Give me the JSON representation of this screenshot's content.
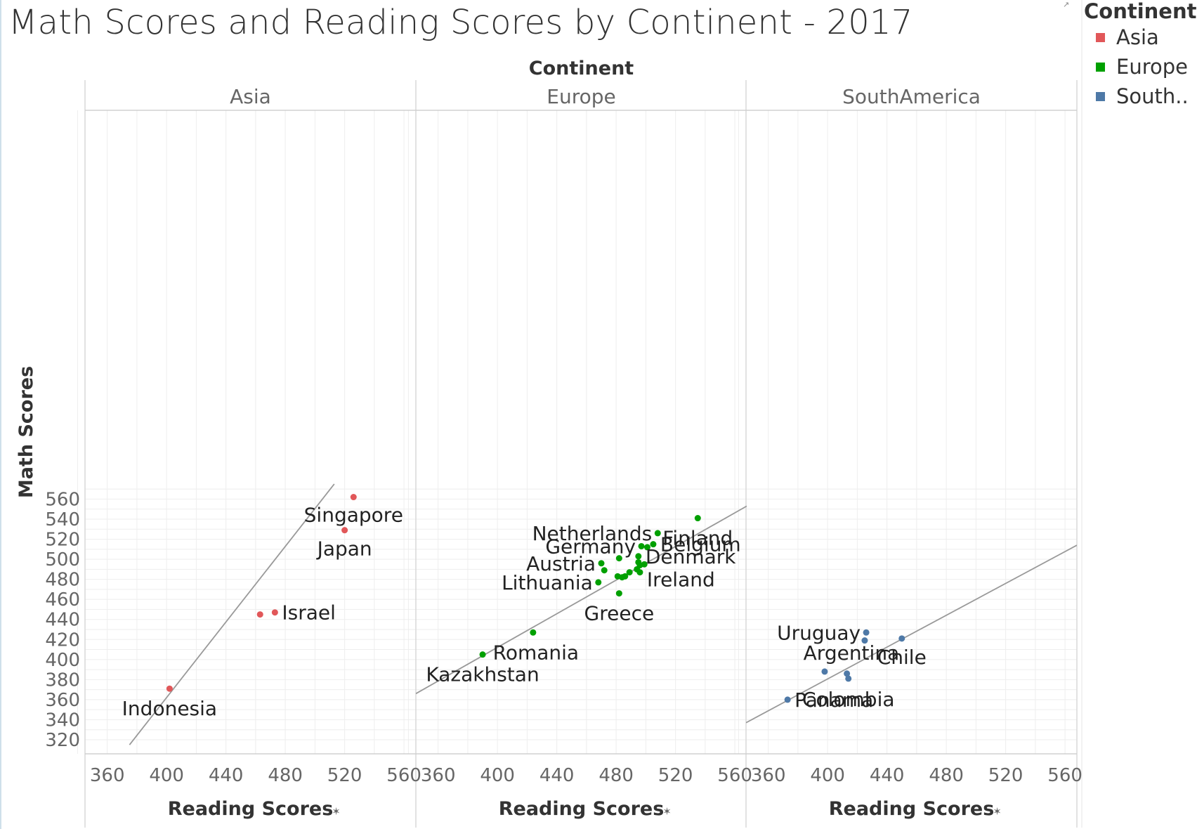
{
  "title": "Math Scores and Reading Scores by Continent - 2017",
  "legend": {
    "title": "Continent",
    "items": [
      {
        "label": "Asia",
        "color": "#e15759"
      },
      {
        "label": "Europe",
        "color": "#00a000"
      },
      {
        "label": "South..",
        "color": "#4e79a7"
      }
    ]
  },
  "chart_data": {
    "type": "scatter",
    "title": "Math Scores and Reading Scores by Continent - 2017",
    "column_header_title": "Continent",
    "xlabel": "Reading Scores",
    "ylabel": "Math Scores",
    "xlim": [
      345,
      568
    ],
    "ylim": [
      315,
      575
    ],
    "x_ticks": [
      360,
      400,
      440,
      480,
      520,
      560
    ],
    "y_ticks": [
      320,
      340,
      360,
      380,
      400,
      420,
      440,
      460,
      480,
      500,
      520,
      540,
      560
    ],
    "grid": true,
    "legend_position": "top-right",
    "trend_line_color": "#999999",
    "panels": [
      {
        "name": "Asia",
        "color": "#e15759",
        "trend_line": {
          "x": [
            375,
            513
          ],
          "y": [
            315,
            575
          ]
        },
        "points": [
          {
            "x": 526,
            "y": 562,
            "label": "Singapore"
          },
          {
            "x": 520,
            "y": 529,
            "label": "Japan"
          },
          {
            "x": 473,
            "y": 447,
            "label": "Israel"
          },
          {
            "x": 463,
            "y": 445,
            "label": ""
          },
          {
            "x": 402,
            "y": 371,
            "label": "Indonesia"
          }
        ]
      },
      {
        "name": "Europe",
        "color": "#00a000",
        "trend_line": {
          "x": [
            345,
            568
          ],
          "y": [
            366,
            553
          ]
        },
        "points": [
          {
            "x": 535,
            "y": 541,
            "label": "Finland"
          },
          {
            "x": 508,
            "y": 526,
            "label": "Netherlands"
          },
          {
            "x": 505,
            "y": 515,
            "label": "Belgium"
          },
          {
            "x": 497,
            "y": 513,
            "label": "Germany"
          },
          {
            "x": 501,
            "y": 512,
            "label": ""
          },
          {
            "x": 495,
            "y": 503,
            "label": "Denmark"
          },
          {
            "x": 482,
            "y": 501,
            "label": ""
          },
          {
            "x": 495,
            "y": 497,
            "label": ""
          },
          {
            "x": 470,
            "y": 496,
            "label": "Austria"
          },
          {
            "x": 499,
            "y": 495,
            "label": ""
          },
          {
            "x": 496,
            "y": 494,
            "label": ""
          },
          {
            "x": 494,
            "y": 490,
            "label": ""
          },
          {
            "x": 472,
            "y": 489,
            "label": ""
          },
          {
            "x": 489,
            "y": 487,
            "label": ""
          },
          {
            "x": 496,
            "y": 487,
            "label": "Ireland"
          },
          {
            "x": 481,
            "y": 483,
            "label": ""
          },
          {
            "x": 486,
            "y": 483,
            "label": ""
          },
          {
            "x": 484,
            "y": 482,
            "label": ""
          },
          {
            "x": 468,
            "y": 477,
            "label": "Lithuania"
          },
          {
            "x": 482,
            "y": 466,
            "label": "Greece"
          },
          {
            "x": 424,
            "y": 427,
            "label": "Romania"
          },
          {
            "x": 390,
            "y": 405,
            "label": "Kazakhstan"
          }
        ]
      },
      {
        "name": "SouthAmerica",
        "color": "#4e79a7",
        "trend_line": {
          "x": [
            345,
            568
          ],
          "y": [
            337,
            514
          ]
        },
        "points": [
          {
            "x": 426,
            "y": 427,
            "label": "Uruguay"
          },
          {
            "x": 450,
            "y": 421,
            "label": "Chile"
          },
          {
            "x": 425,
            "y": 419,
            "label": ""
          },
          {
            "x": 398,
            "y": 388,
            "label": "Argentina"
          },
          {
            "x": 413,
            "y": 386,
            "label": ""
          },
          {
            "x": 414,
            "y": 381,
            "label": "Colombia"
          },
          {
            "x": 373,
            "y": 360,
            "label": "Panama"
          }
        ]
      }
    ]
  }
}
